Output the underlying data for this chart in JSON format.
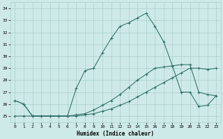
{
  "xlabel": "Humidex (Indice chaleur)",
  "bg_color": "#ceeae8",
  "grid_color": "#aacfcc",
  "line_color": "#2d6e65",
  "x_ticks": [
    0,
    1,
    2,
    3,
    4,
    5,
    6,
    7,
    8,
    9,
    10,
    11,
    12,
    13,
    14,
    15,
    16,
    17,
    18,
    19,
    20,
    21,
    22,
    23
  ],
  "y_ticks": [
    25,
    26,
    27,
    28,
    29,
    30,
    31,
    32,
    33,
    34
  ],
  "xlim": [
    -0.5,
    23.5
  ],
  "ylim": [
    24.5,
    34.5
  ],
  "line1_x": [
    0,
    1,
    2,
    3,
    4,
    5,
    6,
    7,
    8,
    9,
    10,
    11,
    12,
    13,
    14,
    15,
    16,
    17,
    18,
    19,
    20,
    21,
    22,
    23
  ],
  "line1_y": [
    25.0,
    25.0,
    25.0,
    25.0,
    25.0,
    25.0,
    25.0,
    25.0,
    25.1,
    25.2,
    25.4,
    25.6,
    25.9,
    26.2,
    26.6,
    27.0,
    27.4,
    27.8,
    28.2,
    28.6,
    29.0,
    29.0,
    28.9,
    29.0
  ],
  "line2_x": [
    0,
    1,
    2,
    3,
    4,
    5,
    6,
    7,
    8,
    9,
    10,
    11,
    12,
    13,
    14,
    15,
    16,
    17,
    18,
    19,
    20,
    21,
    22,
    23
  ],
  "line2_y": [
    26.3,
    26.0,
    25.0,
    25.0,
    25.0,
    25.0,
    25.0,
    25.1,
    25.2,
    25.5,
    25.9,
    26.3,
    26.8,
    27.4,
    28.0,
    28.5,
    29.0,
    29.1,
    29.2,
    29.3,
    29.3,
    27.0,
    26.8,
    26.7
  ],
  "line3_x": [
    0,
    1,
    2,
    3,
    4,
    5,
    6,
    7,
    8,
    9,
    10,
    11,
    12,
    13,
    14,
    15,
    16,
    17,
    18,
    19,
    20,
    21,
    22,
    23
  ],
  "line3_y": [
    26.3,
    26.0,
    25.0,
    25.0,
    25.0,
    25.0,
    25.0,
    27.3,
    28.8,
    29.0,
    30.3,
    31.5,
    32.5,
    32.8,
    33.2,
    33.6,
    32.5,
    31.2,
    29.2,
    27.0,
    27.0,
    25.8,
    25.9,
    26.7
  ]
}
